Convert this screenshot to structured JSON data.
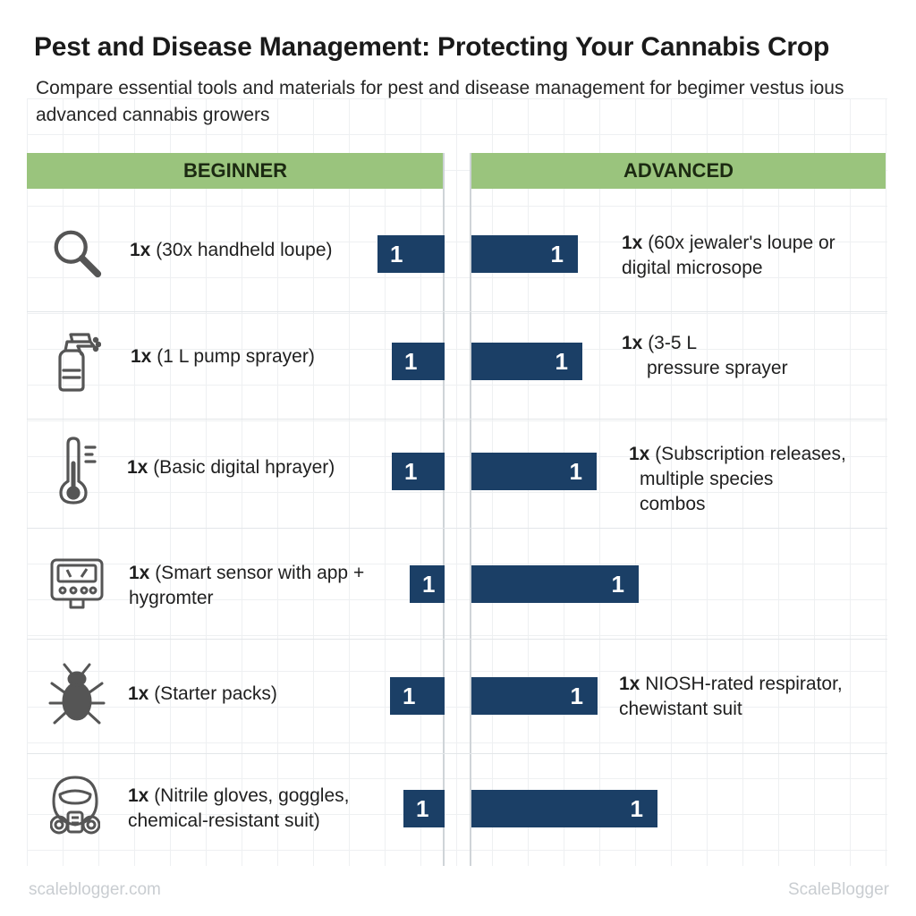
{
  "title": "Pest and Disease Management: Protecting Your Cannabis Crop",
  "subtitle": "Compare essential tools and materials for pest and disease management for begimer vestus ious advanced cannabis growers",
  "columns": {
    "beginner": "BEGINNER",
    "advanced": "ADVANCED"
  },
  "footer": {
    "left": "scaleblogger.com",
    "right": "ScaleBlogger"
  },
  "colors": {
    "bar": "#1b3f66",
    "header": "#9ac47d",
    "icon": "#555555"
  },
  "chart_data": {
    "type": "bar",
    "orientation": "diverging-horizontal",
    "title": "Pest and Disease Management: Protecting Your Cannabis Crop",
    "subtitle": "Compare essential tools and materials for pest and disease management for begimer vestus ious advanced cannabis growers",
    "categories": [
      "magnifier-icon",
      "sprayer-icon",
      "thermometer-icon",
      "sensor-icon",
      "bug-icon",
      "respirator-icon"
    ],
    "series": [
      {
        "name": "BEGINNER",
        "values": [
          1,
          1,
          1,
          1,
          1,
          1
        ],
        "qty": [
          "1x",
          "1x",
          "1x",
          "1x",
          "1x",
          "1x"
        ],
        "items": [
          [
            "(30x handheld loupe)"
          ],
          [
            "(1 L pump sprayer)"
          ],
          [
            "(Basic digital hprayer)"
          ],
          [
            "(Smart sensor with app +",
            "hygromter"
          ],
          [
            "(Starter packs)"
          ],
          [
            "(Nitrile gloves, goggles,",
            "chemical-resistant suit)"
          ]
        ]
      },
      {
        "name": "ADVANCED",
        "values": [
          1,
          1,
          1,
          1,
          1,
          1
        ],
        "qty": [
          "1x",
          "1x",
          "1x",
          "1x",
          "1x",
          "1x"
        ],
        "items": [
          [
            "(60x jewaler's loupe or",
            "digital microsope"
          ],
          [
            "(3-5 L",
            "pressure sprayer"
          ],
          [
            "(Subscription releases,",
            "multiple species",
            "combos"
          ],
          [],
          [
            "NIOSH-rated respirator,",
            "chewistant suit"
          ],
          []
        ]
      }
    ],
    "grid": true,
    "legend": "none"
  }
}
